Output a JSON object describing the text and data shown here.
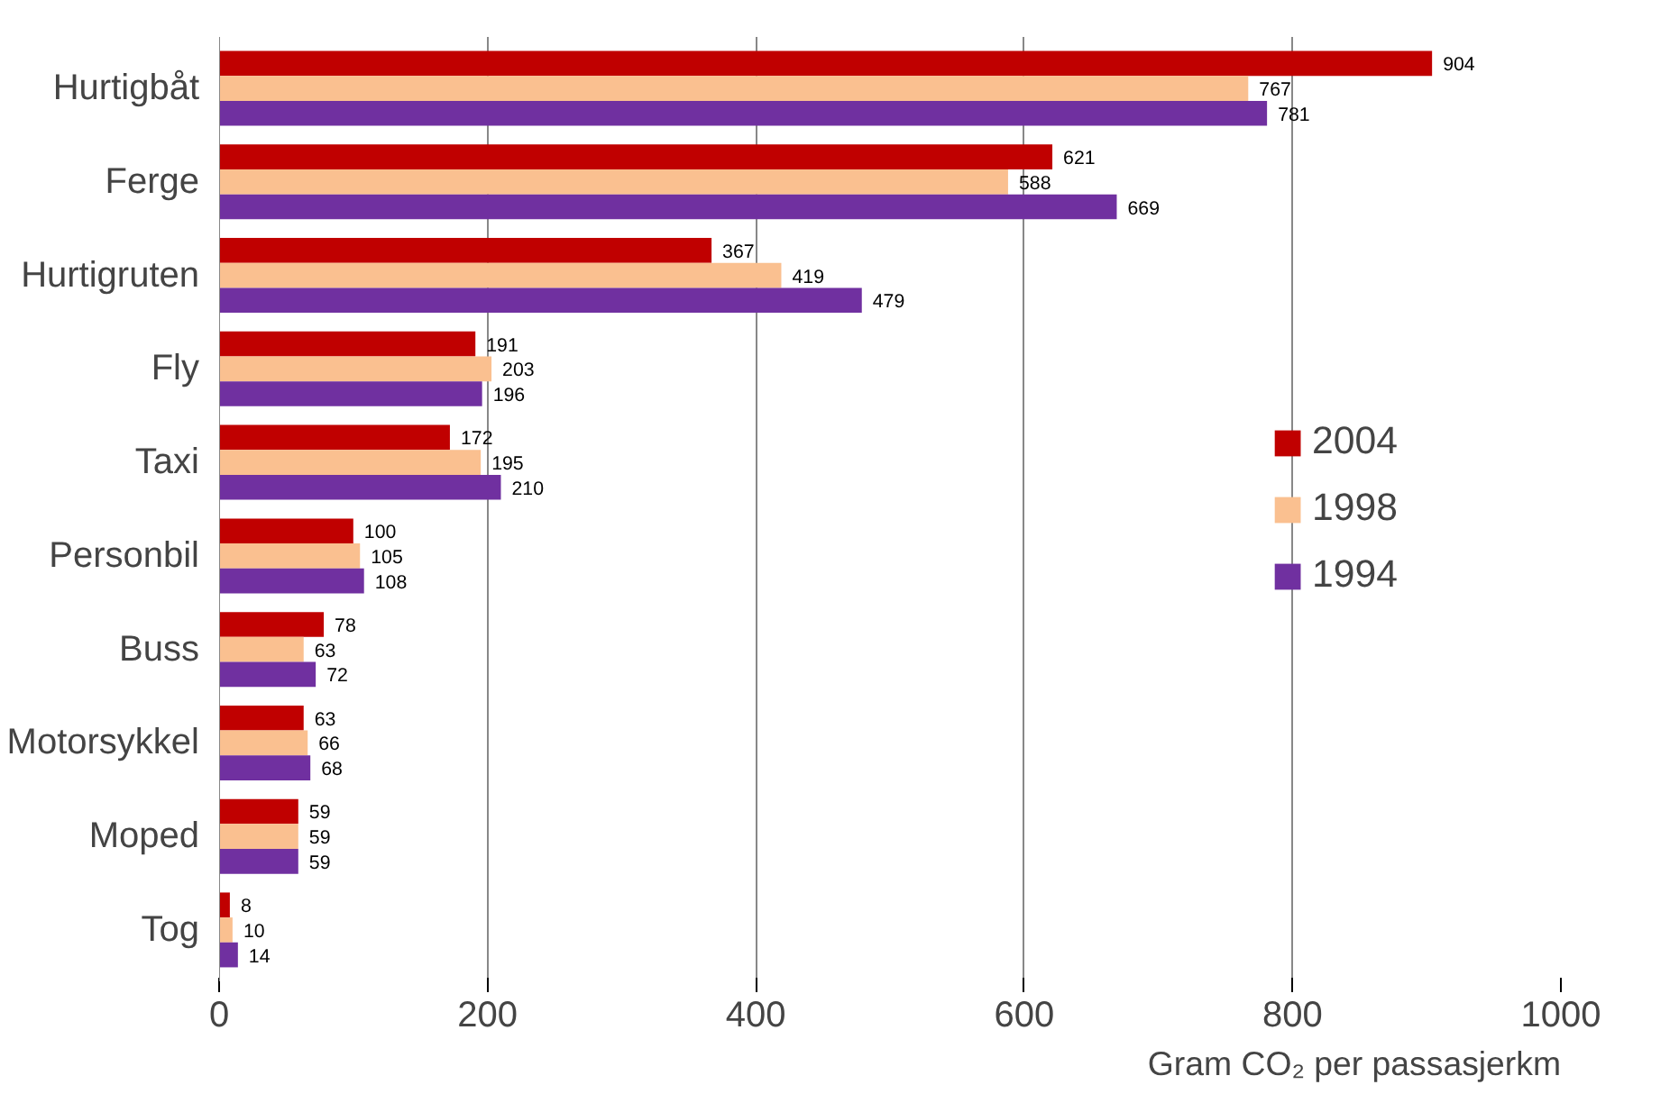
{
  "chart_data": {
    "type": "bar",
    "orientation": "horizontal",
    "xlabel": "Gram CO₂ per passasjerkm",
    "categories": [
      "Hurtigbåt",
      "Ferge",
      "Hurtigruten",
      "Fly",
      "Taxi",
      "Personbil",
      "Buss",
      "Motorsykkel",
      "Moped",
      "Tog"
    ],
    "series": [
      {
        "name": "2004",
        "color": "#c00000",
        "values": [
          904,
          621,
          367,
          191,
          172,
          100,
          78,
          63,
          59,
          8
        ]
      },
      {
        "name": "1998",
        "color": "#fac090",
        "values": [
          767,
          588,
          419,
          203,
          195,
          105,
          63,
          66,
          59,
          10
        ]
      },
      {
        "name": "1994",
        "color": "#7030a0",
        "values": [
          781,
          669,
          479,
          196,
          210,
          108,
          72,
          68,
          59,
          14
        ]
      }
    ],
    "xlim": [
      0,
      1000
    ],
    "xticks": [
      0,
      200,
      400,
      600,
      800,
      1000
    ],
    "grid": "x",
    "legend": "right",
    "data_labels": true
  }
}
